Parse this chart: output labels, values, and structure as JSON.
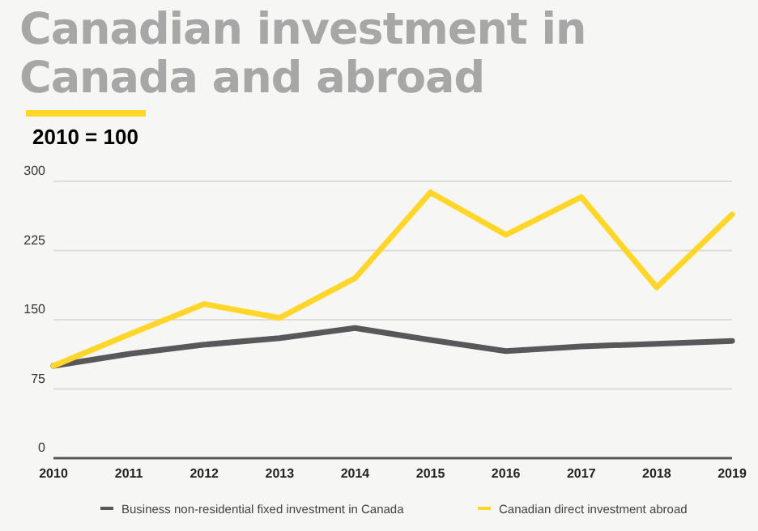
{
  "chart_data": {
    "type": "line",
    "title": "Canadian investment in Canada and abroad",
    "subtitle": "2010 = 100",
    "categories": [
      "2010",
      "2011",
      "2012",
      "2013",
      "2014",
      "2015",
      "2016",
      "2017",
      "2018",
      "2019"
    ],
    "series": [
      {
        "name": "Business non-residential fixed investment in Canada",
        "color": "#58585a",
        "values": [
          100,
          113,
          123,
          130,
          141,
          128,
          116,
          121,
          124,
          127
        ]
      },
      {
        "name": "Canadian direct investment abroad",
        "color": "#ffd629",
        "values": [
          100,
          134,
          167,
          152,
          195,
          288,
          242,
          283,
          185,
          264
        ]
      }
    ],
    "ylim": [
      0,
      300
    ],
    "yticks": [
      0,
      75,
      150,
      225,
      300
    ],
    "grid": "y",
    "legend": "bottom",
    "marker": "none",
    "line_style": "solid"
  }
}
